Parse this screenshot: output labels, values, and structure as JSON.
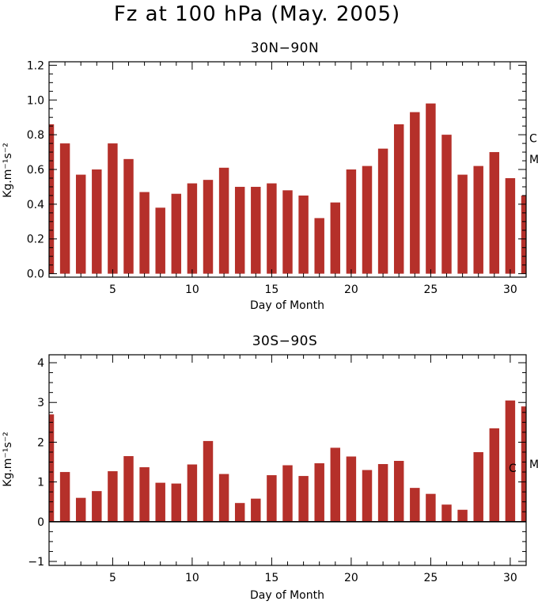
{
  "figure": {
    "title": "Fz at 100 hPa (May. 2005)"
  },
  "chart_data": [
    {
      "type": "bar",
      "title": "30N−90N",
      "xlabel": "Day of Month",
      "ylabel": "Kg.m⁻¹s⁻²",
      "xlim": [
        1,
        31
      ],
      "ylim": [
        -0.02,
        1.22
      ],
      "xticks": [
        5,
        10,
        15,
        20,
        25,
        30
      ],
      "yticks": [
        0.0,
        0.2,
        0.4,
        0.6,
        0.8,
        1.0,
        1.2
      ],
      "ytick_labels": [
        "0.0",
        "0.2",
        "0.4",
        "0.6",
        "0.8",
        "1.0",
        "1.2"
      ],
      "bar_color": "#b5302a",
      "days": [
        1,
        2,
        3,
        4,
        5,
        6,
        7,
        8,
        9,
        10,
        11,
        12,
        13,
        14,
        15,
        16,
        17,
        18,
        19,
        20,
        21,
        22,
        23,
        24,
        25,
        26,
        27,
        28,
        29,
        30,
        31
      ],
      "values": [
        0.86,
        0.75,
        0.57,
        0.6,
        0.75,
        0.66,
        0.47,
        0.38,
        0.46,
        0.52,
        0.54,
        0.61,
        0.5,
        0.5,
        0.52,
        0.48,
        0.45,
        0.32,
        0.41,
        0.6,
        0.62,
        0.72,
        0.86,
        0.93,
        0.98,
        0.8,
        0.57,
        0.62,
        0.7,
        0.55,
        0.45
      ],
      "right_markers": [
        {
          "label": "C",
          "value": 0.78
        },
        {
          "label": "M",
          "value": 0.66
        }
      ]
    },
    {
      "type": "bar",
      "title": "30S−90S",
      "xlabel": "Day of Month",
      "ylabel": "Kg.m⁻¹s⁻²",
      "xlim": [
        1,
        31
      ],
      "ylim": [
        -1.1,
        4.2
      ],
      "xticks": [
        5,
        10,
        15,
        20,
        25,
        30
      ],
      "yticks": [
        -1,
        0,
        1,
        2,
        3,
        4
      ],
      "ytick_labels": [
        "−1",
        "0",
        "1",
        "2",
        "3",
        "4"
      ],
      "bar_color": "#b5302a",
      "days": [
        1,
        2,
        3,
        4,
        5,
        6,
        7,
        8,
        9,
        10,
        11,
        12,
        13,
        14,
        15,
        16,
        17,
        18,
        19,
        20,
        21,
        22,
        23,
        24,
        25,
        26,
        27,
        28,
        29,
        30,
        31
      ],
      "values": [
        2.7,
        1.25,
        0.6,
        0.77,
        1.27,
        1.65,
        1.37,
        0.98,
        0.96,
        1.44,
        2.03,
        1.2,
        0.47,
        0.58,
        1.17,
        1.42,
        1.15,
        1.47,
        1.86,
        1.64,
        1.3,
        1.45,
        1.53,
        0.85,
        0.7,
        0.43,
        0.3,
        1.75,
        2.35,
        3.05,
        2.9
      ],
      "zero_line": true,
      "right_markers": [
        {
          "label": "C",
          "value": 1.35
        },
        {
          "label": "M",
          "value": 1.45
        }
      ]
    }
  ]
}
